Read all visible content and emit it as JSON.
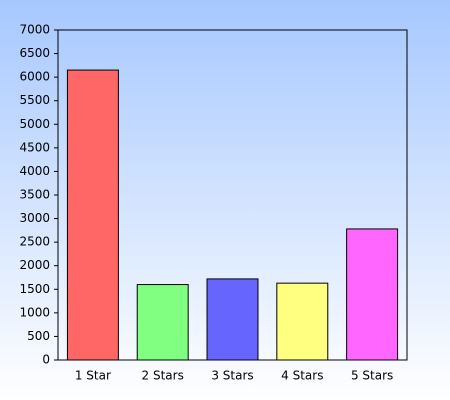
{
  "chart_data": {
    "type": "bar",
    "categories": [
      "1 Star",
      "2 Stars",
      "3 Stars",
      "4 Stars",
      "5 Stars"
    ],
    "values": [
      6150,
      1600,
      1720,
      1630,
      2780
    ],
    "colors": [
      "#ff6666",
      "#80ff80",
      "#6666ff",
      "#ffff80",
      "#ff66ff"
    ],
    "ylim": [
      0,
      7000
    ],
    "yticks": [
      0,
      500,
      1000,
      1500,
      2000,
      2500,
      3000,
      3500,
      4000,
      4500,
      5000,
      5500,
      6000,
      6500,
      7000
    ],
    "grid": false
  }
}
